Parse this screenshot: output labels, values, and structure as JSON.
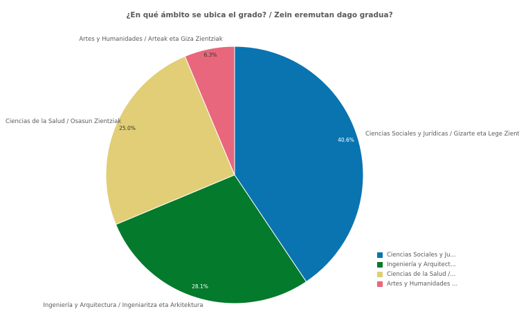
{
  "chart_data": {
    "type": "pie",
    "title": "¿En qué ámbito se ubica el grado? / Zein eremutan dago gradua?",
    "slices": [
      {
        "label": "Ciencias Sociales y Jurídicas / Gizarte eta Lege Zientziak",
        "legend": "Ciencias Sociales y Ju...",
        "value": 40.6,
        "value_label": "40.6%",
        "color": "#0a74b0"
      },
      {
        "label": "Ingeniería y Arquitectura / Ingeniaritza eta Arkitektura",
        "legend": "Ingeniería y Arquitect...",
        "value": 28.1,
        "value_label": "28.1%",
        "color": "#047a2c"
      },
      {
        "label": "Ciencias de la Salud / Osasun Zientziak",
        "legend": "Ciencias de la Salud /...",
        "value": 25.0,
        "value_label": "25.0%",
        "color": "#e1ce76"
      },
      {
        "label": "Artes y Humanidades / Arteak eta Giza Zientziak",
        "legend": "Artes y Humanidades ...",
        "value": 6.3,
        "value_label": "6.3%",
        "color": "#e8677c"
      }
    ],
    "legend_position": "bottom-right"
  }
}
